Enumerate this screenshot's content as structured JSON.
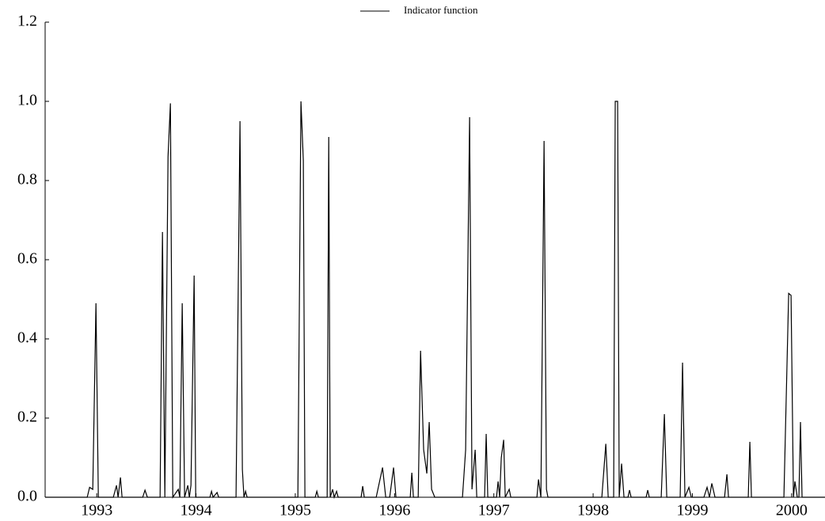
{
  "chart_data": {
    "type": "line",
    "x": [
      1992.48,
      1992.904,
      1992.928,
      1992.96,
      1992.992,
      1993.016,
      1993.167,
      1993.199,
      1993.215,
      1993.239,
      1993.255,
      1993.463,
      1993.486,
      1993.51,
      1993.638,
      1993.662,
      1993.686,
      1993.718,
      1993.742,
      1993.766,
      1993.821,
      1993.837,
      1993.861,
      1993.885,
      1993.917,
      1993.933,
      1993.949,
      1993.981,
      1993.997,
      1994.14,
      1994.156,
      1994.172,
      1994.212,
      1994.228,
      1994.403,
      1994.443,
      1994.467,
      1994.483,
      1994.499,
      1994.515,
      1995.026,
      1995.057,
      1995.081,
      1995.097,
      1995.201,
      1995.217,
      1995.233,
      1995.321,
      1995.337,
      1995.352,
      1995.376,
      1995.392,
      1995.416,
      1995.432,
      1995.663,
      1995.679,
      1995.695,
      1995.815,
      1995.879,
      1995.911,
      1995.951,
      1995.99,
      1996.014,
      1996.158,
      1996.174,
      1996.19,
      1996.238,
      1996.262,
      1996.293,
      1996.325,
      1996.349,
      1996.373,
      1996.405,
      1996.684,
      1996.716,
      1996.756,
      1996.78,
      1996.812,
      1996.828,
      1996.907,
      1996.923,
      1996.939,
      1997.027,
      1997.043,
      1997.059,
      1997.075,
      1997.099,
      1997.115,
      1997.155,
      1997.171,
      1997.434,
      1997.45,
      1997.474,
      1997.506,
      1997.53,
      1997.545,
      1998.088,
      1998.128,
      1998.152,
      1998.207,
      1998.223,
      1998.247,
      1998.263,
      1998.287,
      1998.311,
      1998.351,
      1998.367,
      1998.383,
      1998.534,
      1998.55,
      1998.566,
      1998.686,
      1998.718,
      1998.742,
      1998.877,
      1998.901,
      1998.925,
      1998.965,
      1998.989,
      1999.116,
      1999.148,
      1999.172,
      1999.196,
      1999.228,
      1999.324,
      1999.348,
      1999.364,
      1999.563,
      1999.579,
      1999.595,
      1999.922,
      1999.97,
      1999.994,
      2000.018,
      2000.033,
      2000.057,
      2000.073,
      2000.089,
      2000.105,
      2000.336
    ],
    "series": [
      {
        "name": "Indicator function",
        "color": "#000000",
        "values": [
          0,
          0,
          0.025,
          0.02,
          0.49,
          0,
          0,
          0.03,
          0,
          0.05,
          0,
          0,
          0.018,
          0,
          0,
          0.67,
          0,
          0.86,
          0.995,
          0,
          0.02,
          0,
          0.49,
          0,
          0.03,
          0,
          0.03,
          0.56,
          0,
          0,
          0.015,
          0,
          0.012,
          0,
          0,
          0.95,
          0.07,
          0,
          0.015,
          0,
          0,
          1.0,
          0.85,
          0,
          0,
          0.015,
          0,
          0,
          0.91,
          0,
          0.02,
          0,
          0.015,
          0,
          0,
          0.028,
          0,
          0,
          0.075,
          0,
          0,
          0.075,
          0,
          0,
          0.062,
          0,
          0,
          0.37,
          0.12,
          0.06,
          0.19,
          0.02,
          0,
          0,
          0.12,
          0.96,
          0.02,
          0.12,
          0,
          0,
          0.16,
          0,
          0,
          0.04,
          0,
          0.1,
          0.145,
          0,
          0.02,
          0,
          0,
          0.045,
          0,
          0.9,
          0.02,
          0,
          0,
          0.135,
          0,
          0,
          1.0,
          1.0,
          0,
          0.085,
          0,
          0,
          0.018,
          0,
          0,
          0.018,
          0,
          0,
          0.21,
          0,
          0,
          0.34,
          0,
          0.025,
          0,
          0,
          0.025,
          0,
          0.035,
          0,
          0,
          0.058,
          0,
          0,
          0.14,
          0,
          0,
          0.515,
          0.51,
          0,
          0.04,
          0,
          0,
          0.19,
          0,
          0
        ]
      }
    ],
    "xlim": [
      1992.48,
      2000.336
    ],
    "xticks": [
      1993,
      1994,
      1995,
      1996,
      1997,
      1998,
      1999,
      2000
    ],
    "ylim": [
      0,
      1.2
    ],
    "yticks": [
      {
        "value": 0,
        "label": "0.0"
      },
      0.2,
      0.4,
      0.6,
      0.8,
      {
        "value": 1,
        "label": "1.0"
      },
      1.2
    ]
  }
}
